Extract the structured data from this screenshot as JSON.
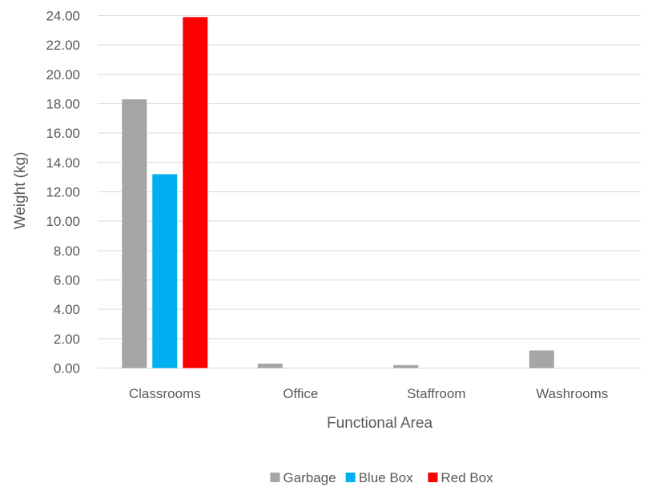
{
  "chart_data": {
    "type": "bar",
    "title": "",
    "xlabel": "Functional Area",
    "ylabel": "Weight (kg)",
    "ylim": [
      0,
      24
    ],
    "ytick_step": 2,
    "ytick_labels": [
      "0.00",
      "2.00",
      "4.00",
      "6.00",
      "8.00",
      "10.00",
      "12.00",
      "14.00",
      "16.00",
      "18.00",
      "20.00",
      "22.00",
      "24.00"
    ],
    "categories": [
      "Classrooms",
      "Office",
      "Staffroom",
      "Washrooms"
    ],
    "series": [
      {
        "name": "Garbage",
        "color": "#a5a5a5",
        "values": [
          18.3,
          0.3,
          0.2,
          1.2
        ]
      },
      {
        "name": "Blue Box",
        "color": "#00b0f0",
        "values": [
          13.2,
          0,
          0,
          0
        ]
      },
      {
        "name": "Red Box",
        "color": "#ff0000",
        "values": [
          23.9,
          0,
          0,
          0
        ]
      }
    ],
    "grid": true,
    "legend_position": "bottom"
  }
}
